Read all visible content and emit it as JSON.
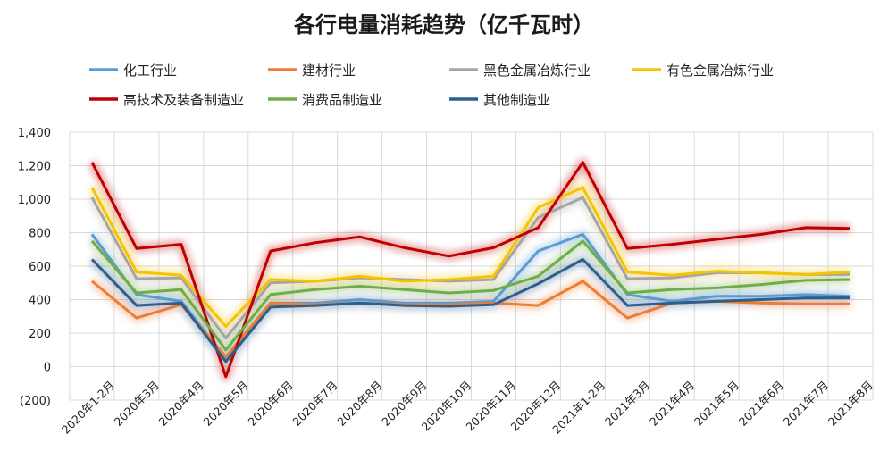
{
  "chart_data": {
    "type": "line",
    "title": "各行电量消耗趋势（亿千瓦时）",
    "xlabel": "",
    "ylabel": "",
    "ylim": [
      -200,
      1400
    ],
    "yticks": [
      {
        "value": 1400,
        "label": "1,400"
      },
      {
        "value": 1200,
        "label": "1,200"
      },
      {
        "value": 1000,
        "label": "1,000"
      },
      {
        "value": 800,
        "label": "800"
      },
      {
        "value": 600,
        "label": "600"
      },
      {
        "value": 400,
        "label": "400"
      },
      {
        "value": 200,
        "label": "200"
      },
      {
        "value": 0,
        "label": "0"
      },
      {
        "value": -200,
        "label": "(200)",
        "color": "#e00000"
      }
    ],
    "grid": true,
    "legend_position": "top",
    "categories": [
      "2020年1-2月",
      "2020年3月",
      "2020年4月",
      "2020年5月",
      "2020年6月",
      "2020年7月",
      "2020年8月",
      "2020年9月",
      "2020年10月",
      "2020年11月",
      "2020年12月",
      "2021年1-2月",
      "2021年3月",
      "2021年4月",
      "2021年5月",
      "2021年6月",
      "2021年7月",
      "2021年8月"
    ],
    "series": [
      {
        "name": "化工行业",
        "color": "#5b9bd5",
        "values": [
          790,
          430,
          390,
          50,
          380,
          380,
          400,
          380,
          380,
          390,
          690,
          790,
          430,
          390,
          420,
          420,
          430,
          420
        ]
      },
      {
        "name": "建材行业",
        "color": "#ed7d31",
        "values": [
          510,
          290,
          370,
          60,
          380,
          370,
          380,
          370,
          370,
          380,
          365,
          510,
          290,
          380,
          390,
          380,
          375,
          375
        ]
      },
      {
        "name": "黑色金属冶炼行业",
        "color": "#a5a5a5",
        "values": [
          1010,
          525,
          530,
          170,
          500,
          510,
          530,
          520,
          510,
          520,
          890,
          1010,
          525,
          530,
          560,
          560,
          550,
          550
        ]
      },
      {
        "name": "有色金属冶炼行业",
        "color": "#f5c400",
        "values": [
          1070,
          565,
          545,
          240,
          520,
          510,
          540,
          510,
          520,
          540,
          950,
          1070,
          565,
          545,
          570,
          560,
          550,
          565
        ]
      },
      {
        "name": "高技术及装备制造业",
        "color": "#c00000",
        "values": [
          1220,
          705,
          730,
          -60,
          690,
          740,
          775,
          710,
          660,
          710,
          830,
          1220,
          705,
          730,
          760,
          790,
          830,
          825
        ]
      },
      {
        "name": "消费品制造业",
        "color": "#70ad47",
        "values": [
          750,
          440,
          460,
          100,
          430,
          460,
          480,
          460,
          440,
          455,
          540,
          750,
          440,
          460,
          470,
          490,
          515,
          520
        ]
      },
      {
        "name": "其他制造业",
        "color": "#2e5f8a",
        "values": [
          640,
          365,
          380,
          30,
          355,
          365,
          380,
          365,
          360,
          370,
          495,
          640,
          365,
          380,
          390,
          400,
          410,
          410
        ]
      }
    ]
  }
}
